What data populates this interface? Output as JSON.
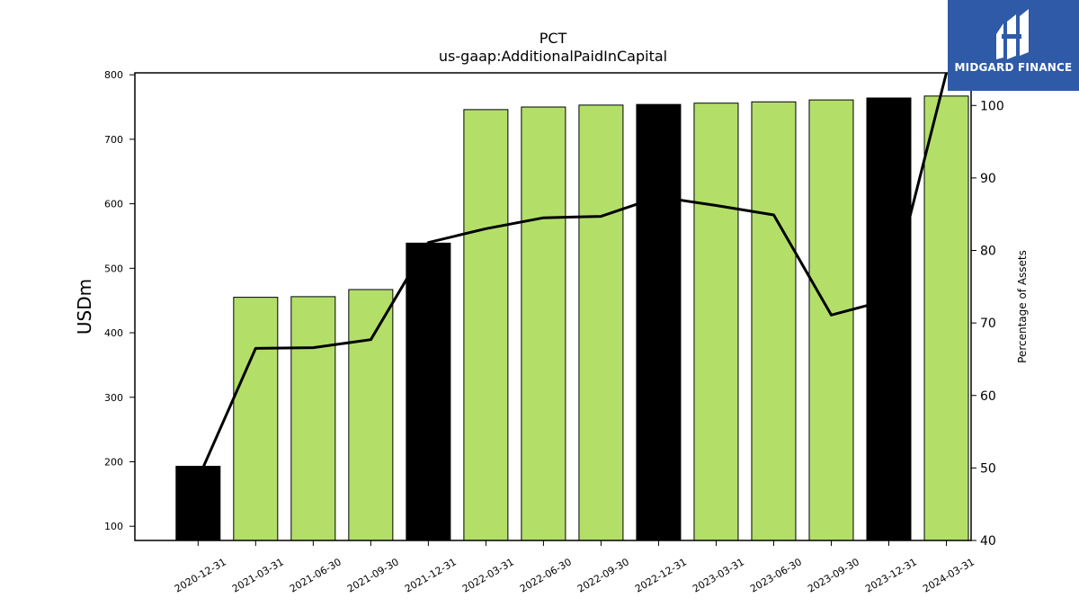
{
  "chart_data": {
    "type": "bar",
    "title": "PCT",
    "subtitle": "us-gaap:AdditionalPaidInCapital",
    "ylabel": "USDm",
    "y2label": "Percentage of Assets",
    "categories": [
      "2020-12-31",
      "2021-03-31",
      "2021-06-30",
      "2021-09-30",
      "2021-12-31",
      "2022-03-31",
      "2022-06-30",
      "2022-09-30",
      "2022-12-31",
      "2023-03-31",
      "2023-06-30",
      "2023-09-30",
      "2023-12-31",
      "2024-03-31"
    ],
    "series": [
      {
        "kind": "bar",
        "axis": "left",
        "values": [
          193,
          455,
          456,
          467,
          539,
          746,
          750,
          753,
          754,
          756,
          758,
          761,
          764,
          767
        ]
      },
      {
        "kind": "line",
        "axis": "right",
        "values": [
          48.5,
          66.5,
          66.6,
          67.7,
          81.1,
          83.0,
          84.5,
          84.7,
          87.4,
          86.2,
          84.9,
          71.1,
          73.2,
          104.5
        ]
      }
    ],
    "bar_colors": [
      "#000000",
      "#b3df69",
      "#b3df69",
      "#b3df69",
      "#000000",
      "#b3df69",
      "#b3df69",
      "#b3df69",
      "#000000",
      "#b3df69",
      "#b3df69",
      "#b3df69",
      "#000000",
      "#b3df69"
    ],
    "line_color": "#000000",
    "ylim": [
      78,
      803
    ],
    "y2lim": [
      40,
      104.5
    ],
    "yticks": [
      100,
      200,
      300,
      400,
      500,
      600,
      700,
      800
    ],
    "y2ticks": [
      40,
      50,
      60,
      70,
      80,
      90,
      100
    ],
    "grid": false
  },
  "logo": {
    "text": "MIDGARD FINANCE",
    "bg": "#2e5aa8"
  }
}
